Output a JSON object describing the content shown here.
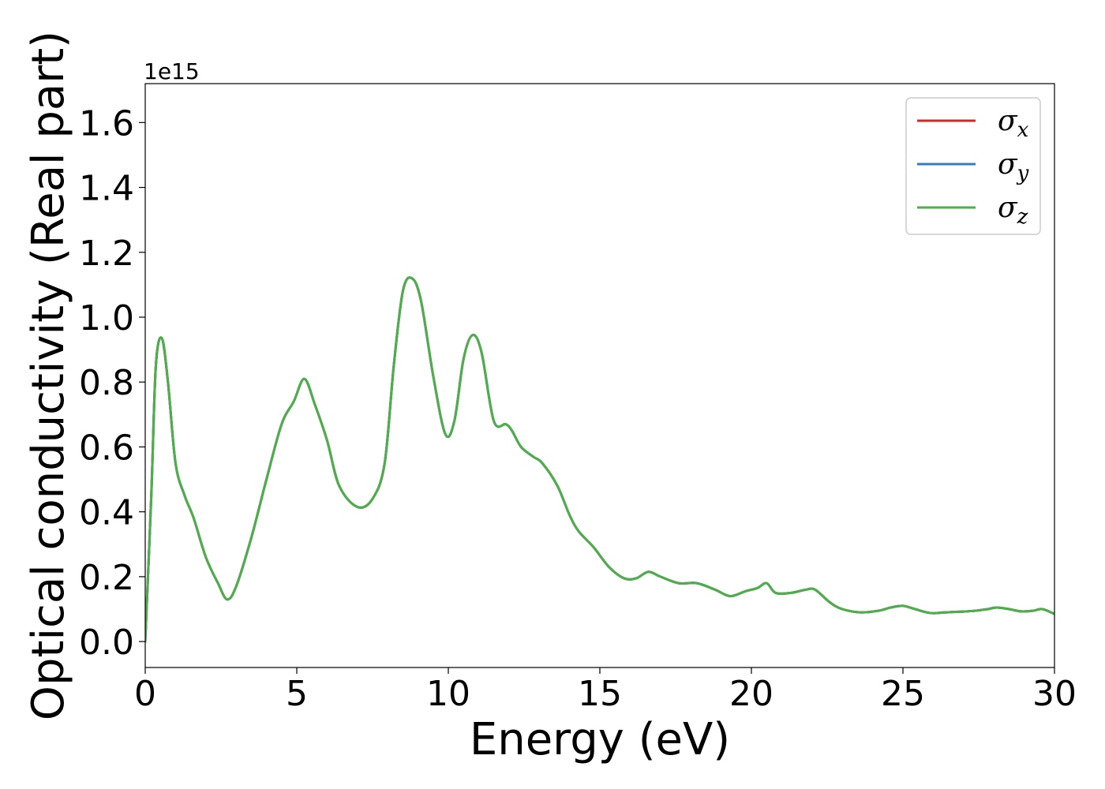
{
  "chart_data": {
    "type": "line",
    "title": "",
    "xlabel": "Energy (eV)",
    "ylabel": "Optical conductivity (Real part)",
    "y_offset_text": "1e15",
    "y_scale_factor": 1000000000000000.0,
    "xlim": [
      0,
      30
    ],
    "ylim": [
      -0.08,
      1.72
    ],
    "x_ticks": [
      0,
      5,
      10,
      15,
      20,
      25,
      30
    ],
    "x_tick_labels": [
      "0",
      "5",
      "10",
      "15",
      "20",
      "25",
      "30"
    ],
    "y_ticks": [
      0.0,
      0.2,
      0.4,
      0.6,
      0.8,
      1.0,
      1.2,
      1.4,
      1.6
    ],
    "y_tick_labels": [
      "0.0",
      "0.2",
      "0.4",
      "0.6",
      "0.8",
      "1.0",
      "1.2",
      "1.4",
      "1.6"
    ],
    "grid": false,
    "legend_position": "top-right",
    "x": [
      0,
      0.2,
      0.35,
      0.55,
      0.75,
      1.0,
      1.3,
      1.6,
      2.0,
      2.4,
      2.7,
      3.0,
      3.5,
      4.0,
      4.5,
      4.9,
      5.25,
      5.6,
      6.0,
      6.4,
      7.0,
      7.5,
      7.9,
      8.2,
      8.5,
      8.8,
      9.1,
      9.5,
      9.9,
      10.2,
      10.5,
      10.8,
      11.1,
      11.5,
      11.9,
      12.1,
      12.4,
      12.8,
      13.1,
      13.6,
      14.0,
      14.3,
      14.8,
      15.3,
      15.8,
      16.2,
      16.6,
      17.0,
      17.6,
      18.2,
      18.8,
      19.3,
      19.8,
      20.2,
      20.5,
      20.8,
      21.3,
      21.8,
      22.1,
      22.6,
      23.0,
      23.6,
      24.2,
      24.6,
      25.0,
      25.4,
      25.9,
      26.4,
      26.9,
      27.4,
      27.8,
      28.1,
      28.5,
      28.9,
      29.3,
      29.6,
      30.0
    ],
    "series": [
      {
        "name": "σx",
        "color": "#d62728",
        "values": [
          0.0,
          0.45,
          0.85,
          0.935,
          0.8,
          0.55,
          0.45,
          0.38,
          0.26,
          0.18,
          0.13,
          0.17,
          0.32,
          0.5,
          0.67,
          0.74,
          0.81,
          0.73,
          0.62,
          0.48,
          0.415,
          0.44,
          0.55,
          0.85,
          1.08,
          1.12,
          1.05,
          0.82,
          0.64,
          0.68,
          0.87,
          0.945,
          0.89,
          0.68,
          0.67,
          0.65,
          0.6,
          0.57,
          0.55,
          0.48,
          0.39,
          0.34,
          0.29,
          0.23,
          0.195,
          0.195,
          0.215,
          0.2,
          0.18,
          0.18,
          0.16,
          0.14,
          0.155,
          0.165,
          0.18,
          0.15,
          0.15,
          0.16,
          0.16,
          0.12,
          0.1,
          0.09,
          0.095,
          0.105,
          0.11,
          0.1,
          0.088,
          0.09,
          0.092,
          0.095,
          0.1,
          0.105,
          0.1,
          0.093,
          0.095,
          0.1,
          0.085
        ]
      },
      {
        "name": "σy",
        "color": "#377eb8",
        "values": [
          0.0,
          0.45,
          0.85,
          0.935,
          0.8,
          0.55,
          0.45,
          0.38,
          0.26,
          0.18,
          0.13,
          0.17,
          0.32,
          0.5,
          0.67,
          0.74,
          0.81,
          0.73,
          0.62,
          0.48,
          0.415,
          0.44,
          0.55,
          0.85,
          1.08,
          1.12,
          1.05,
          0.82,
          0.64,
          0.68,
          0.87,
          0.945,
          0.89,
          0.68,
          0.67,
          0.65,
          0.6,
          0.57,
          0.55,
          0.48,
          0.39,
          0.34,
          0.29,
          0.23,
          0.195,
          0.195,
          0.215,
          0.2,
          0.18,
          0.18,
          0.16,
          0.14,
          0.155,
          0.165,
          0.18,
          0.15,
          0.15,
          0.16,
          0.16,
          0.12,
          0.1,
          0.09,
          0.095,
          0.105,
          0.11,
          0.1,
          0.088,
          0.09,
          0.092,
          0.095,
          0.1,
          0.105,
          0.1,
          0.093,
          0.095,
          0.1,
          0.085
        ]
      },
      {
        "name": "σz",
        "color": "#4daf4a",
        "values": [
          0.0,
          0.45,
          0.85,
          0.935,
          0.8,
          0.55,
          0.45,
          0.38,
          0.26,
          0.18,
          0.13,
          0.17,
          0.32,
          0.5,
          0.67,
          0.74,
          0.81,
          0.73,
          0.62,
          0.48,
          0.415,
          0.44,
          0.55,
          0.85,
          1.08,
          1.12,
          1.05,
          0.82,
          0.64,
          0.68,
          0.87,
          0.945,
          0.89,
          0.68,
          0.67,
          0.65,
          0.6,
          0.57,
          0.55,
          0.48,
          0.39,
          0.34,
          0.29,
          0.23,
          0.195,
          0.195,
          0.215,
          0.2,
          0.18,
          0.18,
          0.16,
          0.14,
          0.155,
          0.165,
          0.18,
          0.15,
          0.15,
          0.16,
          0.16,
          0.12,
          0.1,
          0.09,
          0.095,
          0.105,
          0.11,
          0.1,
          0.088,
          0.09,
          0.092,
          0.095,
          0.1,
          0.105,
          0.1,
          0.093,
          0.095,
          0.1,
          0.085
        ]
      }
    ],
    "legend": [
      {
        "symbol": "σ",
        "sub": "x"
      },
      {
        "symbol": "σ",
        "sub": "y"
      },
      {
        "symbol": "σ",
        "sub": "z"
      }
    ]
  }
}
